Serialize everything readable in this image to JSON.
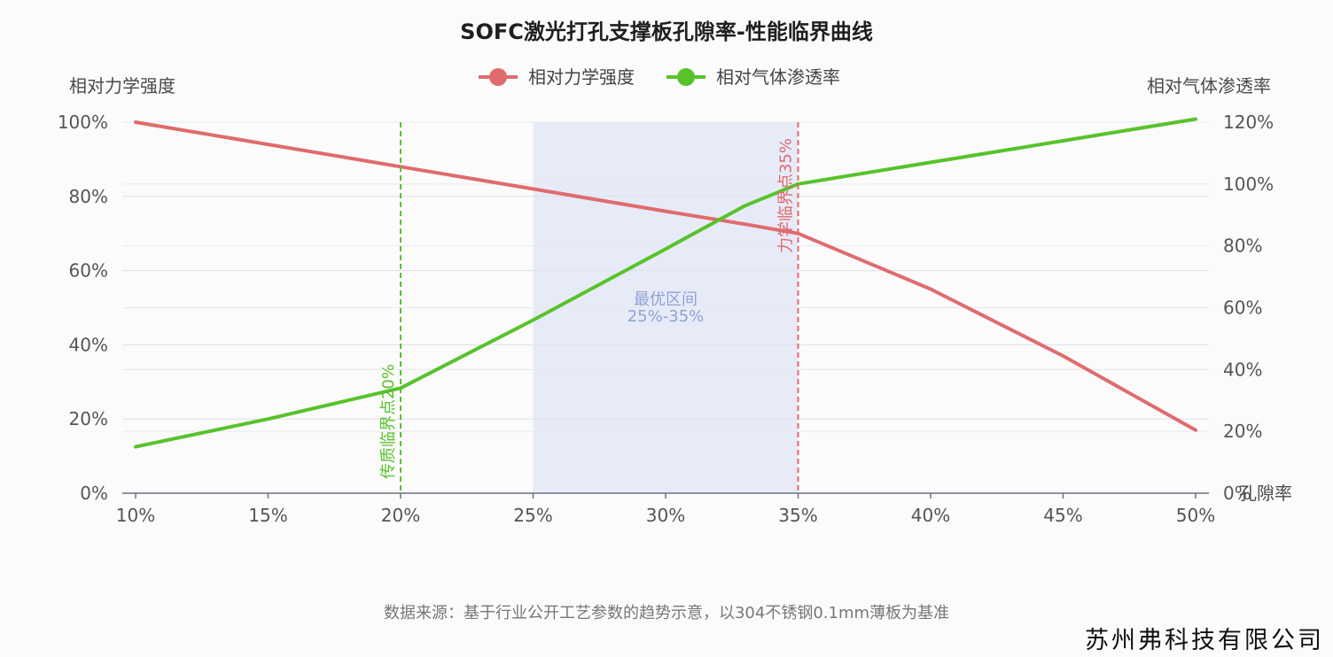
{
  "chart_data": {
    "type": "line",
    "title": "SOFC激光打孔支撑板孔隙率-性能临界曲线",
    "xlabel": "孔隙率",
    "ylabel_left": "相对力学强度",
    "ylabel_right": "相对气体渗透率",
    "x_ticks": [
      "10%",
      "15%",
      "20%",
      "25%",
      "30%",
      "35%",
      "40%",
      "45%",
      "50%"
    ],
    "y_left_ticks": [
      "0%",
      "20%",
      "40%",
      "60%",
      "80%",
      "100%"
    ],
    "y_right_ticks": [
      "0%",
      "20%",
      "40%",
      "60%",
      "80%",
      "100%",
      "120%"
    ],
    "xlim": [
      10,
      50
    ],
    "ylim_left": [
      0,
      100
    ],
    "ylim_right": [
      0,
      120
    ],
    "legend": {
      "placement": "top-center"
    },
    "series": [
      {
        "name": "相对力学强度",
        "axis": "left",
        "color": "#e06b6e",
        "x": [
          10,
          15,
          20,
          25,
          30,
          33,
          35,
          40,
          45,
          50
        ],
        "y": [
          100,
          94,
          88,
          82,
          76,
          72.5,
          70,
          55,
          37,
          17
        ]
      },
      {
        "name": "相对气体渗透率",
        "axis": "right",
        "color": "#58c22b",
        "x": [
          10,
          15,
          20,
          25,
          30,
          33,
          35,
          40,
          45,
          50
        ],
        "y": [
          15,
          24,
          34,
          56,
          79,
          93,
          100,
          107,
          114,
          121
        ]
      }
    ],
    "annotations": {
      "band": {
        "x_start": 25,
        "x_end": 35,
        "line1": "最优区间",
        "line2": "25%-35%",
        "color": "#e7ebf7"
      },
      "vlines": [
        {
          "x": 20,
          "label": "传质临界点20%",
          "color": "#58c22b"
        },
        {
          "x": 35,
          "label": "力学临界点35%",
          "color": "#e06b6e"
        }
      ]
    },
    "grid": true
  },
  "footer": {
    "source": "数据来源：基于行业公开工艺参数的趋势示意，以304不锈钢0.1mm薄板为基准",
    "company": "苏州弗科技有限公司"
  }
}
